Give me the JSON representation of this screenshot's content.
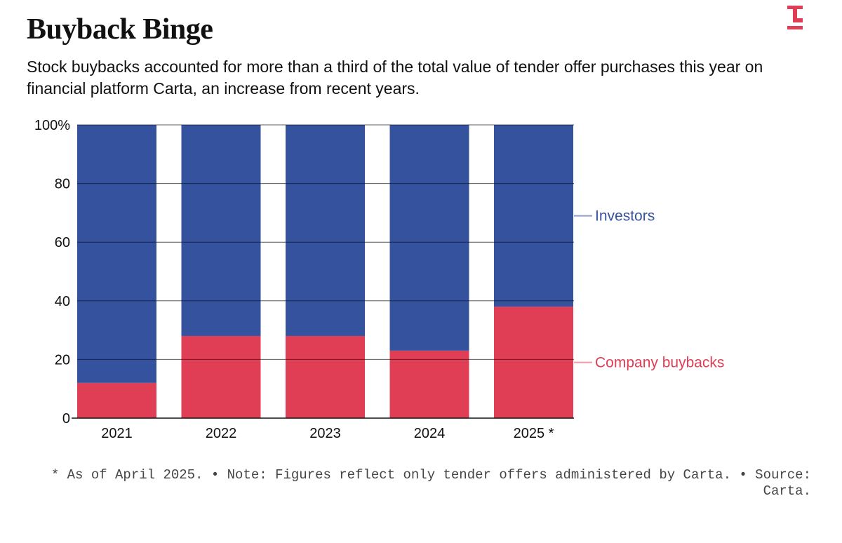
{
  "title": "Buyback Binge",
  "subtitle": "Stock buybacks accounted for more than a third of the total value of tender offer purchases this year on financial platform Carta, an increase from recent years.",
  "logo_icon": "brand-t-logo-icon",
  "colors": {
    "investors": "#34529E",
    "buybacks": "#E03E55",
    "investors_leader": "#8DA0CC",
    "buybacks_leader": "#F09AA6",
    "logo": "#E03E55"
  },
  "chart_data": {
    "type": "bar",
    "stacked": true,
    "categories": [
      "2021",
      "2022",
      "2023",
      "2024",
      "2025 *"
    ],
    "series": [
      {
        "name": "Company buybacks",
        "values": [
          12,
          28,
          28,
          23,
          38
        ]
      },
      {
        "name": "Investors",
        "values": [
          88,
          72,
          72,
          77,
          62
        ]
      }
    ],
    "yticks": [
      "0",
      "20",
      "40",
      "60",
      "80",
      "100%"
    ],
    "ytick_values": [
      0,
      20,
      40,
      60,
      80,
      100
    ],
    "ylim": [
      0,
      100
    ],
    "grid": true,
    "legend": {
      "investors_label": "Investors",
      "buybacks_label": "Company buybacks",
      "placement": "right"
    }
  },
  "footnote": "* As of April 2025. • Note: Figures reflect only tender offers administered by Carta. • Source: Carta."
}
